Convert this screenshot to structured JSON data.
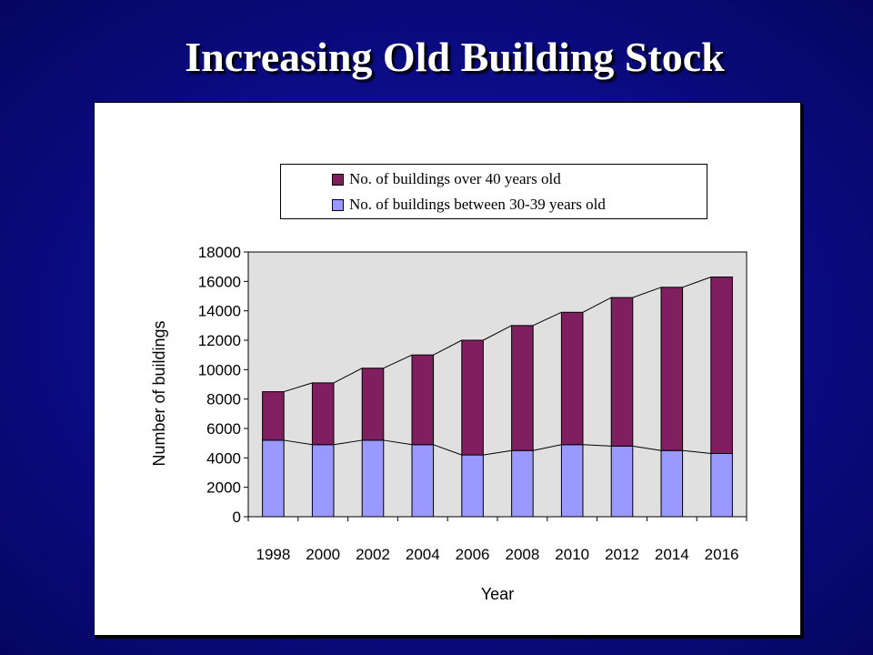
{
  "slide": {
    "title": "Increasing Old Building Stock"
  },
  "chart_data": {
    "type": "bar",
    "stacked": true,
    "categories": [
      "1998",
      "2000",
      "2002",
      "2004",
      "2006",
      "2008",
      "2010",
      "2012",
      "2014",
      "2016"
    ],
    "series": [
      {
        "name": "No. of buildings between 30-39 years old",
        "color": "#9999ff",
        "values": [
          5200,
          4900,
          5200,
          4900,
          4200,
          4500,
          4900,
          4800,
          4500,
          4300
        ]
      },
      {
        "name": "No. of buildings over 40 years old",
        "color": "#7f1f5f",
        "values": [
          3300,
          4200,
          4900,
          6100,
          7800,
          8500,
          9000,
          10100,
          11100,
          12000
        ]
      }
    ],
    "legend_order": [
      1,
      0
    ],
    "xlabel": "Year",
    "ylabel": "Number of buildings",
    "ylim": [
      0,
      18000
    ],
    "yticks": [
      "0",
      "2000",
      "4000",
      "6000",
      "8000",
      "10000",
      "12000",
      "14000",
      "16000",
      "18000"
    ],
    "grid": false,
    "plot_background": "#e0e0e0",
    "series_lines": true,
    "legend_position": "top"
  }
}
